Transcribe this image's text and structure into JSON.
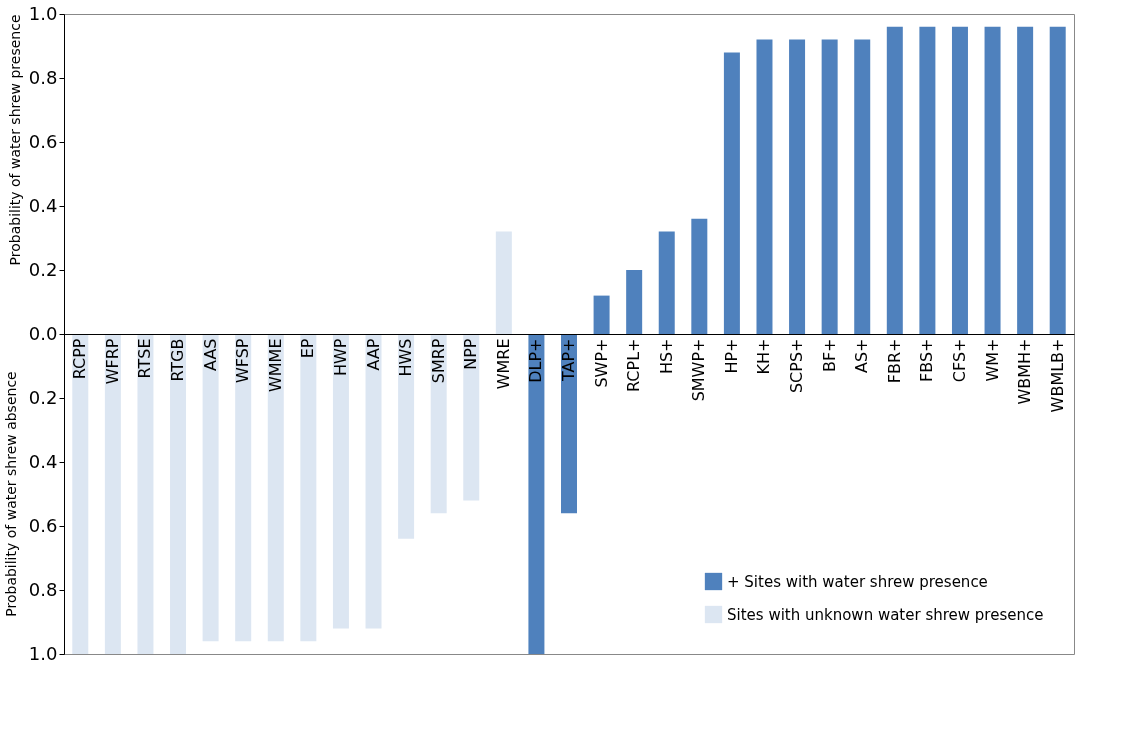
{
  "chart_data": {
    "type": "bar",
    "ylabel": "Probability of water shrew presence",
    "annotations": [
      "Probability of water shrew absence"
    ],
    "categories": [
      "RCPP",
      "WFRP",
      "RTSE",
      "RTGB",
      "AAS",
      "WFSP",
      "WMME",
      "EP",
      "HWP",
      "AAP",
      "HWS",
      "SMRP",
      "NPP",
      "WMRE",
      "DLP+",
      "TAP+",
      "SWP+",
      "RCPL+",
      "HS+",
      "SMWP+",
      "HP+",
      "KH+",
      "SCPS+",
      "BF+",
      "AS+",
      "FBR+",
      "FBS+",
      "CFS+",
      "WM+",
      "WBMH+",
      "WBMLB+"
    ],
    "series": [
      {
        "name": "+ Sites with water shrew presence",
        "color": "#4f81bd",
        "values": [
          null,
          null,
          null,
          null,
          null,
          null,
          null,
          null,
          null,
          null,
          null,
          null,
          null,
          null,
          -1.0,
          -0.56,
          0.12,
          0.2,
          0.32,
          0.36,
          0.88,
          0.92,
          0.92,
          0.92,
          0.92,
          0.96,
          0.96,
          0.96,
          0.96,
          0.96,
          0.96
        ]
      },
      {
        "name": "Sites with unknown water shrew presence",
        "color": "#dce6f2",
        "values": [
          -1.0,
          -1.0,
          -1.0,
          -1.0,
          -0.96,
          -0.96,
          -0.96,
          -0.96,
          -0.92,
          -0.92,
          -0.64,
          -0.56,
          -0.52,
          0.32,
          null,
          null,
          null,
          null,
          null,
          null,
          null,
          null,
          null,
          null,
          null,
          null,
          null,
          null,
          null,
          null,
          null
        ]
      }
    ],
    "ylim": [
      -1.0,
      1.0
    ],
    "yticks": [
      {
        "value": -1.0,
        "label": "1.0"
      },
      {
        "value": -0.8,
        "label": "0.8"
      },
      {
        "value": -0.6,
        "label": "0.6"
      },
      {
        "value": -0.4,
        "label": "0.4"
      },
      {
        "value": -0.2,
        "label": "0.2"
      },
      {
        "value": 0.0,
        "label": "0.0"
      },
      0.2,
      0.4,
      0.6,
      0.8,
      {
        "value": 1.0,
        "label": "1.0"
      }
    ],
    "grid": false,
    "legend": "bottom right"
  }
}
